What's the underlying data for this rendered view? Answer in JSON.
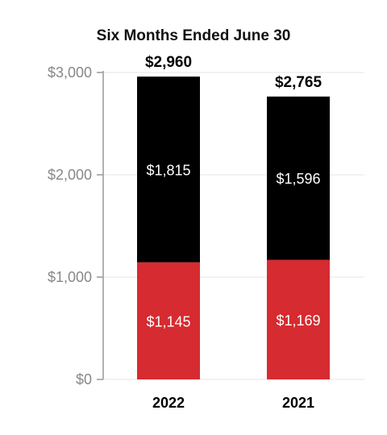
{
  "chart_data": {
    "type": "bar",
    "stacked": true,
    "title": "Six Months Ended June 30",
    "xlabel": "",
    "ylabel": "",
    "categories": [
      "2022",
      "2021"
    ],
    "series": [
      {
        "color": "#d62b30",
        "values": [
          1145,
          1169
        ],
        "labels": [
          "$1,145",
          "$1,169"
        ]
      },
      {
        "color": "#000000",
        "values": [
          1815,
          1596
        ],
        "labels": [
          "$1,815",
          "$1,596"
        ]
      }
    ],
    "totals": [
      2960,
      2765
    ],
    "total_labels": [
      "$2,960",
      "$2,765"
    ],
    "ylim": [
      0,
      3000
    ],
    "yticks": [
      0,
      1000,
      2000,
      3000
    ],
    "ytick_labels": [
      "$0",
      "$1,000",
      "$2,000",
      "$3,000"
    ],
    "grid": true,
    "legend": "none",
    "colors": {
      "grid": "#e6e6e6",
      "axis": "#999999"
    }
  }
}
